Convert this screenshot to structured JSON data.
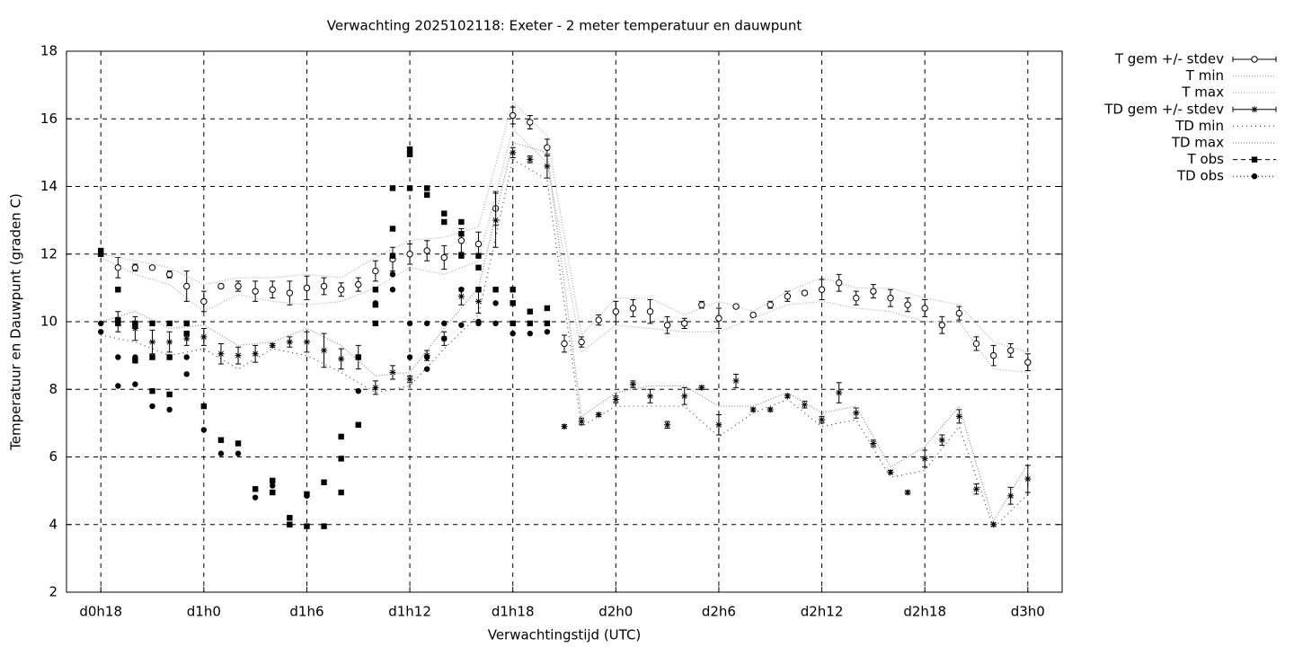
{
  "chart_data": {
    "type": "line",
    "title": "Verwachting 2025102118: Exeter - 2 meter temperatuur en dauwpunt",
    "x_label": "Verwachtingstijd (UTC)",
    "y_label": "Temperatuur en Dauwpunt (graden C)",
    "xlim": [
      16,
      74
    ],
    "xticks": [
      {
        "value": 18,
        "label": "d0h18"
      },
      {
        "value": 24,
        "label": "d1h0"
      },
      {
        "value": 30,
        "label": "d1h6"
      },
      {
        "value": 36,
        "label": "d1h12"
      },
      {
        "value": 42,
        "label": "d1h18"
      },
      {
        "value": 48,
        "label": "d2h0"
      },
      {
        "value": 54,
        "label": "d2h6"
      },
      {
        "value": 60,
        "label": "d2h12"
      },
      {
        "value": 66,
        "label": "d2h18"
      },
      {
        "value": 72,
        "label": "d3h0"
      }
    ],
    "ylim": [
      2,
      18
    ],
    "yticks": [
      2,
      4,
      6,
      8,
      10,
      12,
      14,
      16,
      18
    ],
    "grid": true,
    "legend": "outside-right",
    "series": [
      {
        "name": "T gem +/- stdev",
        "style": "errorbar",
        "marker": "open-circle",
        "color": "#000000",
        "x": [
          19,
          20,
          21,
          22,
          23,
          24,
          25,
          26,
          27,
          28,
          29,
          30,
          31,
          32,
          33,
          34,
          35,
          36,
          37,
          38,
          39,
          40,
          41,
          42,
          43,
          44,
          45,
          46,
          47,
          48,
          49,
          50,
          51,
          52,
          53,
          54,
          55,
          56,
          57,
          58,
          59,
          60,
          61,
          62,
          63,
          64,
          65,
          66,
          67,
          68,
          69,
          70,
          71,
          72
        ],
        "values": [
          11.6,
          11.6,
          11.6,
          11.4,
          11.05,
          10.6,
          11.05,
          11.05,
          10.9,
          10.95,
          10.85,
          11.0,
          11.05,
          10.95,
          11.1,
          11.5,
          11.85,
          12.0,
          12.1,
          11.9,
          12.4,
          12.3,
          13.35,
          16.1,
          15.9,
          15.15,
          9.35,
          9.4,
          10.05,
          10.3,
          10.4,
          10.3,
          9.9,
          9.95,
          10.5,
          10.1,
          10.45,
          10.2,
          10.5,
          10.75,
          10.85,
          10.95,
          11.15,
          10.7,
          10.9,
          10.7,
          10.5,
          10.4,
          9.9,
          10.25,
          9.35,
          9.0,
          9.15,
          8.8
        ],
        "errors": [
          0.3,
          0.1,
          0.05,
          0.1,
          0.45,
          0.3,
          0.05,
          0.15,
          0.3,
          0.25,
          0.35,
          0.35,
          0.25,
          0.2,
          0.2,
          0.3,
          0.35,
          0.3,
          0.3,
          0.35,
          0.35,
          0.35,
          0.5,
          0.25,
          0.2,
          0.25,
          0.25,
          0.15,
          0.15,
          0.3,
          0.25,
          0.35,
          0.25,
          0.15,
          0.1,
          0.3,
          0.05,
          0.05,
          0.1,
          0.15,
          0.05,
          0.3,
          0.25,
          0.2,
          0.2,
          0.25,
          0.2,
          0.25,
          0.25,
          0.2,
          0.2,
          0.3,
          0.2,
          0.25
        ]
      },
      {
        "name": "T min",
        "style": "envelope",
        "color": "#aaaaaa",
        "dash": "1,2",
        "x": [
          18,
          20,
          22,
          24,
          26,
          28,
          30,
          32,
          34,
          36,
          38,
          40,
          42,
          44,
          46,
          48,
          50,
          52,
          54,
          56,
          58,
          60,
          62,
          64,
          66,
          68,
          70,
          72
        ],
        "values": [
          11.9,
          11.4,
          11.1,
          10.3,
          10.8,
          10.6,
          10.5,
          10.6,
          11.0,
          11.6,
          11.4,
          11.8,
          15.7,
          14.7,
          9.1,
          9.9,
          9.8,
          9.7,
          9.7,
          10.1,
          10.5,
          10.6,
          10.4,
          10.3,
          10.0,
          10.0,
          8.6,
          8.5
        ]
      },
      {
        "name": "T max",
        "style": "envelope",
        "color": "#aaaaaa",
        "dash": "1,2",
        "x": [
          18,
          20,
          22,
          24,
          26,
          28,
          30,
          32,
          34,
          36,
          38,
          40,
          42,
          44,
          46,
          48,
          50,
          52,
          54,
          56,
          58,
          60,
          62,
          64,
          66,
          68,
          70,
          72
        ],
        "values": [
          12.0,
          11.8,
          11.6,
          11.1,
          11.3,
          11.3,
          11.4,
          11.3,
          11.9,
          12.4,
          12.5,
          12.8,
          16.5,
          15.5,
          9.6,
          10.7,
          10.7,
          10.2,
          10.6,
          10.3,
          10.9,
          11.3,
          11.0,
          11.0,
          10.7,
          10.5,
          9.4,
          9.1
        ]
      },
      {
        "name": "TD gem +/- stdev",
        "style": "errorbar",
        "marker": "asterisk",
        "color": "#000000",
        "x": [
          19,
          20,
          21,
          22,
          23,
          24,
          25,
          26,
          27,
          28,
          29,
          30,
          31,
          32,
          33,
          34,
          35,
          36,
          37,
          38,
          39,
          40,
          41,
          42,
          43,
          44,
          45,
          46,
          47,
          48,
          49,
          50,
          51,
          52,
          53,
          54,
          55,
          56,
          57,
          58,
          59,
          60,
          61,
          62,
          63,
          64,
          65,
          66,
          67,
          68,
          69,
          70,
          71,
          72
        ],
        "values": [
          10.0,
          9.8,
          9.4,
          9.4,
          9.5,
          9.55,
          9.05,
          9.0,
          9.05,
          9.3,
          9.4,
          9.4,
          9.15,
          8.9,
          8.95,
          8.05,
          8.5,
          8.3,
          9.0,
          9.5,
          10.75,
          10.6,
          13.0,
          15.0,
          14.8,
          14.6,
          6.9,
          7.05,
          7.25,
          7.7,
          8.15,
          7.8,
          6.95,
          7.8,
          8.05,
          6.95,
          8.25,
          7.4,
          7.4,
          7.8,
          7.55,
          7.1,
          7.9,
          7.3,
          6.4,
          5.55,
          4.95,
          5.95,
          6.5,
          7.2,
          5.05,
          4.0,
          4.85,
          5.35
        ],
        "errors": [
          0.3,
          0.35,
          0.35,
          0.3,
          0.2,
          0.25,
          0.3,
          0.25,
          0.25,
          0.05,
          0.15,
          0.3,
          0.5,
          0.3,
          0.35,
          0.2,
          0.2,
          0.1,
          0.15,
          0.2,
          0.25,
          0.35,
          0.8,
          0.15,
          0.1,
          0.35,
          0.05,
          0.1,
          0.05,
          0.1,
          0.1,
          0.2,
          0.1,
          0.25,
          0.05,
          0.3,
          0.2,
          0.05,
          0.05,
          0.05,
          0.1,
          0.1,
          0.3,
          0.15,
          0.1,
          0.05,
          0.05,
          0.25,
          0.15,
          0.2,
          0.15,
          0.05,
          0.25,
          0.4
        ]
      },
      {
        "name": "TD min",
        "style": "envelope",
        "color": "#444444",
        "dash": "1,4",
        "x": [
          18,
          20,
          22,
          24,
          26,
          28,
          30,
          32,
          34,
          36,
          38,
          40,
          42,
          44,
          46,
          48,
          50,
          52,
          54,
          56,
          58,
          60,
          62,
          64,
          66,
          68,
          70,
          72
        ],
        "values": [
          9.6,
          9.4,
          9.0,
          9.2,
          8.6,
          9.2,
          9.0,
          8.5,
          7.9,
          8.1,
          9.2,
          10.2,
          14.8,
          14.2,
          6.9,
          7.5,
          7.5,
          7.5,
          6.6,
          7.3,
          7.7,
          6.9,
          7.1,
          5.4,
          5.6,
          6.9,
          3.9,
          4.9
        ]
      },
      {
        "name": "TD max",
        "style": "envelope",
        "color": "#888888",
        "dash": "1,2",
        "x": [
          18,
          20,
          22,
          24,
          26,
          28,
          30,
          32,
          34,
          36,
          38,
          40,
          42,
          44,
          46,
          48,
          50,
          52,
          54,
          56,
          58,
          60,
          62,
          64,
          66,
          68,
          70,
          72
        ],
        "values": [
          10.0,
          10.3,
          9.8,
          9.9,
          9.3,
          9.4,
          9.8,
          9.3,
          8.4,
          8.5,
          9.8,
          11.0,
          15.3,
          15.0,
          7.2,
          7.9,
          8.1,
          8.1,
          7.5,
          7.5,
          7.9,
          7.3,
          7.5,
          5.7,
          6.3,
          7.5,
          4.1,
          5.8
        ]
      },
      {
        "name": "T obs",
        "style": "points",
        "marker": "square",
        "color": "#000000",
        "dash": "5,4",
        "x": [
          18,
          18,
          19,
          19,
          19,
          20,
          20,
          20,
          21,
          21,
          21,
          22,
          22,
          22,
          23,
          23,
          24,
          25,
          26,
          27,
          28,
          28,
          29,
          29,
          30,
          30,
          31,
          31,
          32,
          32,
          32,
          33,
          33,
          34,
          34,
          34,
          35,
          35,
          35,
          36,
          36,
          36,
          37,
          37,
          38,
          38,
          39,
          39,
          39,
          40,
          40,
          40,
          41,
          42,
          42,
          42,
          43,
          43,
          44,
          44
        ],
        "values": [
          12.1,
          12.0,
          10.95,
          10.05,
          9.95,
          9.95,
          9.9,
          8.85,
          9.95,
          8.95,
          7.95,
          9.95,
          8.95,
          7.85,
          9.95,
          9.65,
          7.5,
          6.5,
          6.4,
          5.05,
          5.3,
          4.95,
          4.2,
          4.0,
          4.9,
          3.95,
          3.95,
          5.25,
          6.6,
          5.95,
          4.95,
          6.95,
          8.95,
          10.95,
          10.5,
          9.95,
          13.95,
          12.75,
          11.95,
          15.1,
          14.95,
          13.95,
          13.95,
          13.75,
          13.2,
          12.95,
          12.95,
          12.6,
          11.95,
          11.95,
          11.6,
          10.95,
          10.95,
          10.95,
          10.55,
          9.95,
          10.3,
          9.95,
          10.4,
          9.95
        ]
      },
      {
        "name": "TD obs",
        "style": "points",
        "marker": "dot",
        "color": "#000000",
        "dash": "1,3",
        "x": [
          18,
          18,
          19,
          19,
          20,
          20,
          20,
          21,
          22,
          22,
          23,
          23,
          24,
          25,
          26,
          27,
          28,
          29,
          30,
          33,
          34,
          35,
          35,
          35,
          36,
          36,
          37,
          37,
          37,
          38,
          38,
          39,
          39,
          40,
          40,
          40,
          41,
          41,
          42,
          42,
          43,
          44
        ],
        "values": [
          9.95,
          9.7,
          8.95,
          8.1,
          8.95,
          8.85,
          8.15,
          7.5,
          8.95,
          7.4,
          8.95,
          8.45,
          6.8,
          6.1,
          6.1,
          4.8,
          5.15,
          4.0,
          4.85,
          7.95,
          10.55,
          11.95,
          11.4,
          10.95,
          9.95,
          8.95,
          9.95,
          8.95,
          8.6,
          9.95,
          9.5,
          10.95,
          9.9,
          10.95,
          10.0,
          9.95,
          10.55,
          9.95,
          9.95,
          9.65,
          9.65,
          9.7
        ]
      }
    ]
  }
}
